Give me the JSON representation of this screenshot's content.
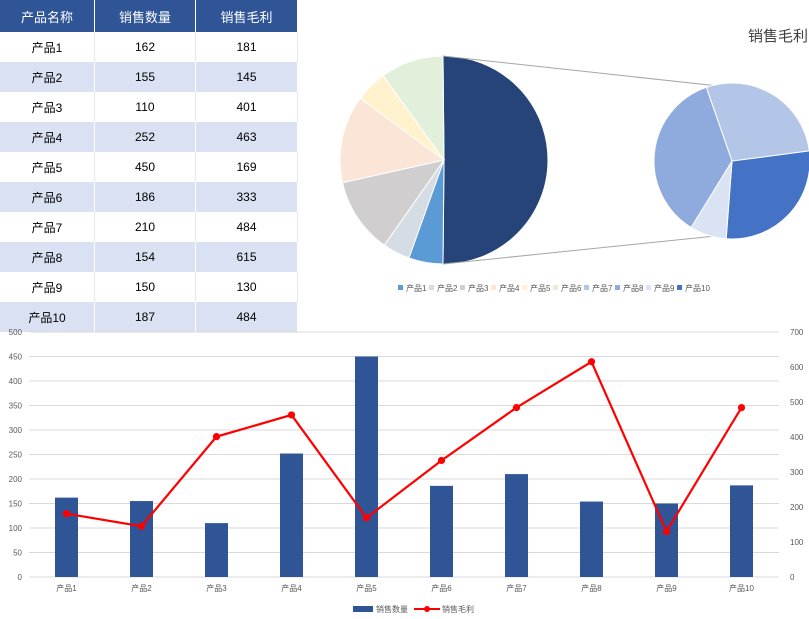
{
  "table": {
    "headers": [
      "产品名称",
      "销售数量",
      "销售毛利"
    ],
    "rows": [
      [
        "产品1",
        "162",
        "181"
      ],
      [
        "产品2",
        "155",
        "145"
      ],
      [
        "产品3",
        "110",
        "401"
      ],
      [
        "产品4",
        "252",
        "463"
      ],
      [
        "产品5",
        "450",
        "169"
      ],
      [
        "产品6",
        "186",
        "333"
      ],
      [
        "产品7",
        "210",
        "484"
      ],
      [
        "产品8",
        "154",
        "615"
      ],
      [
        "产品9",
        "150",
        "130"
      ],
      [
        "产品10",
        "187",
        "484"
      ]
    ]
  },
  "chart_data": [
    {
      "type": "pie",
      "subtype": "pie-of-pie",
      "title": "销售毛利",
      "categories": [
        "产品1",
        "产品2",
        "产品3",
        "产品4",
        "产品5",
        "产品6",
        "产品7",
        "产品8",
        "产品9",
        "产品10"
      ],
      "values": [
        181,
        145,
        401,
        463,
        169,
        333,
        484,
        615,
        130,
        484
      ],
      "secondary_pie_categories": [
        "产品7",
        "产品8",
        "产品9",
        "产品10"
      ],
      "legend_position": "bottom",
      "colors": [
        "#5b9bd5",
        "#d6dce4",
        "#d0cece",
        "#fbe5d6",
        "#fff2cc",
        "#e2efda",
        "#b4c6e7",
        "#8faadc",
        "#dae3f3",
        "#4472c4"
      ],
      "other_slice_color": "#264478"
    },
    {
      "type": "bar",
      "subtype": "bar-line-combo",
      "categories": [
        "产品1",
        "产品2",
        "产品3",
        "产品4",
        "产品5",
        "产品6",
        "产品7",
        "产品8",
        "产品9",
        "产品10"
      ],
      "series": [
        {
          "name": "销售数量",
          "type": "bar",
          "axis": "left",
          "color": "#2f5597",
          "values": [
            162,
            155,
            110,
            252,
            450,
            186,
            210,
            154,
            150,
            187
          ]
        },
        {
          "name": "销售毛利",
          "type": "line",
          "axis": "right",
          "color": "#ff0000",
          "values": [
            181,
            145,
            401,
            463,
            169,
            333,
            484,
            615,
            130,
            484
          ]
        }
      ],
      "ylim": [
        0,
        500
      ],
      "y_ticks": [
        "0",
        "50",
        "100",
        "150",
        "200",
        "250",
        "300",
        "350",
        "400",
        "450",
        "500"
      ],
      "y2lim": [
        0,
        700
      ],
      "y2_ticks": [
        "0",
        "100",
        "200",
        "300",
        "400",
        "500",
        "600",
        "700"
      ],
      "grid": true,
      "legend_position": "bottom"
    }
  ]
}
